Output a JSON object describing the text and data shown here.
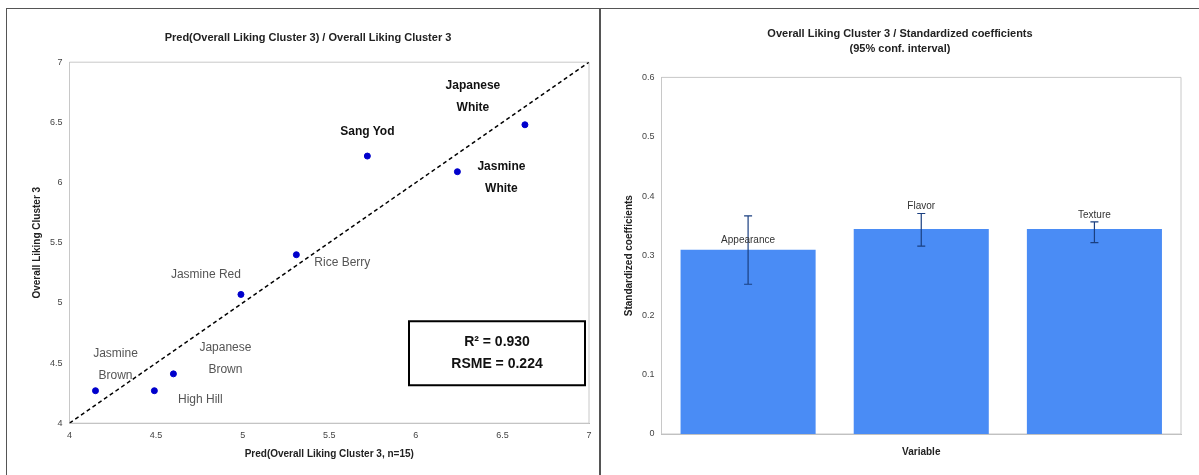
{
  "chart_data": [
    {
      "type": "scatter",
      "title": "Pred(Overall Liking Cluster 3) / Overall Liking Cluster 3",
      "xlabel": "Pred(Overall Liking Cluster 3, n=15)",
      "ylabel": "Overall Liking Cluster 3",
      "xlim": [
        4,
        7
      ],
      "xticks": [
        4,
        4.5,
        5,
        5.5,
        6,
        6.5,
        7
      ],
      "ylim": [
        4,
        7
      ],
      "yticks": [
        4,
        4.5,
        5,
        5.5,
        6,
        6.5,
        7
      ],
      "grid": false,
      "legend": false,
      "marker": "circle",
      "series": [
        {
          "type": "scatter",
          "color": "#0000cc",
          "x": [
            6.63,
            5.72,
            6.24,
            5.31,
            4.99,
            4.6,
            4.49,
            4.15
          ],
          "values": [
            6.48,
            6.22,
            6.09,
            5.4,
            5.07,
            4.41,
            4.27,
            4.27
          ]
        },
        {
          "type": "line",
          "color": "#000000",
          "line_style": "dashed",
          "marker": "none",
          "x": [
            4,
            7
          ],
          "values": [
            4,
            7
          ]
        }
      ],
      "annotations": [
        {
          "text": "Japanese White",
          "x": 6.63,
          "y": 6.48
        },
        {
          "text": "Sang Yod",
          "x": 5.72,
          "y": 6.22
        },
        {
          "text": "Jasmine White",
          "x": 6.24,
          "y": 6.09
        },
        {
          "text": "Rice Berry",
          "x": 5.31,
          "y": 5.4
        },
        {
          "text": "Jasmine Red",
          "x": 4.99,
          "y": 5.07
        },
        {
          "text": "Japanese Brown",
          "x": 4.6,
          "y": 4.41
        },
        {
          "text": "High Hill",
          "x": 4.49,
          "y": 4.27
        },
        {
          "text": "Jasmine Brown",
          "x": 4.15,
          "y": 4.27
        },
        "R² = 0.930",
        "RSME = 0.224"
      ]
    },
    {
      "type": "bar",
      "title": "Overall Liking Cluster 3 / Standardized coefficients",
      "subtitle": "(95% conf. interval)",
      "xlabel": "Variable",
      "ylabel": "Standardized coefficients",
      "categories": [
        "Appearance",
        "Flavor",
        "Texture"
      ],
      "values": [
        0.31,
        0.345,
        0.345
      ],
      "color": "#4a8cf5",
      "errors": [
        [
          0.252,
          0.367
        ],
        [
          0.316,
          0.371
        ],
        [
          0.322,
          0.357
        ]
      ],
      "ylim": [
        0,
        0.6
      ],
      "yticks": [
        0,
        0.1,
        0.2,
        0.3,
        0.4,
        0.5,
        0.6
      ],
      "grid": false,
      "legend": false,
      "tick_labels": "y"
    }
  ]
}
